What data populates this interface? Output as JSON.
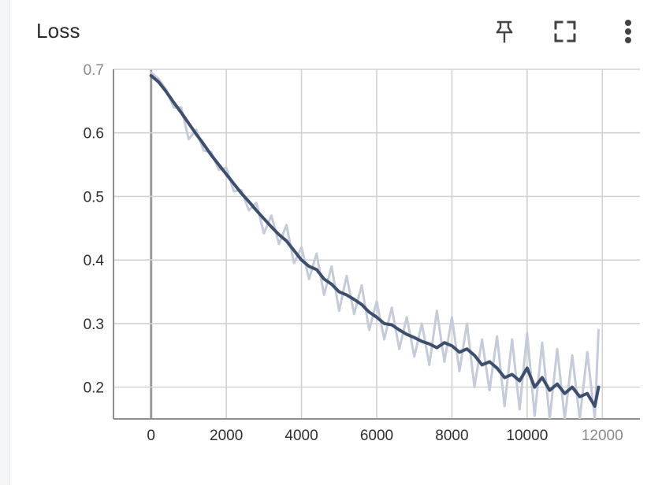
{
  "card": {
    "title": "Loss",
    "actions": [
      {
        "icon": "pin-icon"
      },
      {
        "icon": "fullscreen-icon"
      },
      {
        "icon": "more-vert-icon"
      }
    ]
  },
  "colors": {
    "smoothed_line": "#3d4f6c",
    "raw_line": "#c5cbd8",
    "grid": "#d2d2d2"
  },
  "chart_data": {
    "type": "line",
    "title": "Loss",
    "xlabel": "",
    "ylabel": "",
    "xlim": [
      -1000,
      13000
    ],
    "ylim": [
      0.15,
      0.7
    ],
    "grid": true,
    "x_ticks": [
      {
        "value": 0,
        "label": "0"
      },
      {
        "value": 2000,
        "label": "2000"
      },
      {
        "value": 4000,
        "label": "4000"
      },
      {
        "value": 6000,
        "label": "6000"
      },
      {
        "value": 8000,
        "label": "8000"
      },
      {
        "value": 10000,
        "label": "10000"
      },
      {
        "value": 12000,
        "label": "12000"
      }
    ],
    "y_ticks": [
      {
        "value": 0.2,
        "label": "0.2"
      },
      {
        "value": 0.3,
        "label": "0.3"
      },
      {
        "value": 0.4,
        "label": "0.4"
      },
      {
        "value": 0.5,
        "label": "0.5"
      },
      {
        "value": 0.6,
        "label": "0.6"
      },
      {
        "value": 0.7,
        "label": "0.7"
      }
    ],
    "series": [
      {
        "kind": "smoothed",
        "x": [
          0,
          200,
          400,
          600,
          800,
          1000,
          1200,
          1400,
          1600,
          1800,
          2000,
          2200,
          2400,
          2600,
          2800,
          3000,
          3200,
          3400,
          3600,
          3800,
          4000,
          4200,
          4400,
          4600,
          4800,
          5000,
          5200,
          5400,
          5600,
          5800,
          6000,
          6200,
          6400,
          6600,
          6800,
          7000,
          7200,
          7400,
          7600,
          7800,
          8000,
          8200,
          8400,
          8600,
          8800,
          9000,
          9200,
          9400,
          9600,
          9800,
          10000,
          10200,
          10400,
          10600,
          10800,
          11000,
          11200,
          11400,
          11600,
          11800,
          11900
        ],
        "y": [
          0.69,
          0.68,
          0.665,
          0.648,
          0.632,
          0.615,
          0.598,
          0.582,
          0.565,
          0.55,
          0.535,
          0.52,
          0.505,
          0.492,
          0.478,
          0.465,
          0.452,
          0.44,
          0.43,
          0.415,
          0.4,
          0.39,
          0.385,
          0.37,
          0.362,
          0.35,
          0.345,
          0.338,
          0.33,
          0.318,
          0.31,
          0.3,
          0.298,
          0.29,
          0.283,
          0.278,
          0.272,
          0.268,
          0.262,
          0.27,
          0.265,
          0.255,
          0.26,
          0.25,
          0.235,
          0.24,
          0.23,
          0.215,
          0.22,
          0.21,
          0.23,
          0.2,
          0.215,
          0.195,
          0.205,
          0.19,
          0.2,
          0.185,
          0.19,
          0.17,
          0.2
        ]
      },
      {
        "kind": "raw",
        "x": [
          0,
          200,
          400,
          600,
          800,
          1000,
          1200,
          1400,
          1600,
          1800,
          2000,
          2200,
          2400,
          2600,
          2800,
          3000,
          3200,
          3400,
          3600,
          3800,
          4000,
          4200,
          4400,
          4600,
          4800,
          5000,
          5200,
          5400,
          5600,
          5800,
          6000,
          6200,
          6400,
          6600,
          6800,
          7000,
          7200,
          7400,
          7600,
          7800,
          8000,
          8200,
          8400,
          8600,
          8800,
          9000,
          9200,
          9400,
          9600,
          9800,
          10000,
          10200,
          10400,
          10600,
          10800,
          11000,
          11200,
          11400,
          11600,
          11800,
          11900
        ],
        "y": [
          0.695,
          0.685,
          0.668,
          0.64,
          0.64,
          0.59,
          0.605,
          0.572,
          0.57,
          0.542,
          0.545,
          0.508,
          0.51,
          0.478,
          0.49,
          0.442,
          0.47,
          0.425,
          0.455,
          0.395,
          0.42,
          0.37,
          0.41,
          0.345,
          0.39,
          0.32,
          0.375,
          0.315,
          0.36,
          0.29,
          0.335,
          0.275,
          0.325,
          0.26,
          0.31,
          0.248,
          0.3,
          0.235,
          0.32,
          0.24,
          0.31,
          0.225,
          0.3,
          0.2,
          0.275,
          0.195,
          0.28,
          0.17,
          0.275,
          0.165,
          0.285,
          0.155,
          0.27,
          0.15,
          0.26,
          0.15,
          0.25,
          0.15,
          0.255,
          0.15,
          0.29
        ]
      }
    ]
  }
}
